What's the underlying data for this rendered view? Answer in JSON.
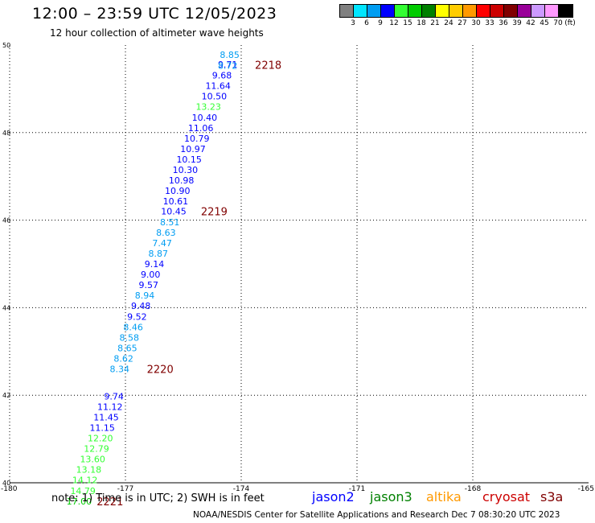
{
  "header": {
    "title": "12:00 – 23:59 UTC 12/05/2023",
    "subtitle": "12 hour collection of altimeter wave heights"
  },
  "scale": {
    "colors": [
      "#808080",
      "#00e5ff",
      "#009df2",
      "#0000ff",
      "#33ff33",
      "#00cc00",
      "#008000",
      "#ffff00",
      "#ffcc00",
      "#ff9900",
      "#ff0000",
      "#cc0000",
      "#800000",
      "#990099",
      "#cc99ff",
      "#ff99ff",
      "#000000"
    ],
    "labels": [
      "3",
      "6",
      "9",
      "12",
      "15",
      "18",
      "21",
      "24",
      "27",
      "30",
      "33",
      "36",
      "39",
      "42",
      "45",
      "70",
      "(ft)"
    ]
  },
  "chart_data": {
    "type": "scatter",
    "xlim": [
      -180,
      -165
    ],
    "ylim": [
      40,
      50
    ],
    "x_ticks": [
      "-180",
      "-177",
      "-174",
      "-171",
      "-168",
      "-165"
    ],
    "y_ticks": [
      "50",
      "48",
      "46",
      "44",
      "42",
      "40"
    ],
    "grid": true,
    "points": [
      {
        "lon": -174.3,
        "lat": 49.78,
        "label": "8.85",
        "color": "#009df2"
      },
      {
        "lon": -174.35,
        "lat": 49.56,
        "label": "9.71",
        "color": "#0000ff"
      },
      {
        "lon": -174.35,
        "lat": 49.53,
        "label": "8.72",
        "color": "#009df2"
      },
      {
        "lon": -174.5,
        "lat": 49.31,
        "label": "9.68",
        "color": "#0000ff"
      },
      {
        "lon": -174.6,
        "lat": 49.07,
        "label": "11.64",
        "color": "#0000ff"
      },
      {
        "lon": -174.7,
        "lat": 48.83,
        "label": "10.50",
        "color": "#0000ff"
      },
      {
        "lon": -174.85,
        "lat": 48.59,
        "label": "13.23",
        "color": "#33ff33"
      },
      {
        "lon": -174.95,
        "lat": 48.35,
        "label": "10.40",
        "color": "#0000ff"
      },
      {
        "lon": -175.05,
        "lat": 48.11,
        "label": "11.06",
        "color": "#0000ff"
      },
      {
        "lon": -175.15,
        "lat": 47.87,
        "label": "10.79",
        "color": "#0000ff"
      },
      {
        "lon": -175.25,
        "lat": 47.63,
        "label": "10.97",
        "color": "#0000ff"
      },
      {
        "lon": -175.35,
        "lat": 47.39,
        "label": "10.15",
        "color": "#0000ff"
      },
      {
        "lon": -175.45,
        "lat": 47.15,
        "label": "10.30",
        "color": "#0000ff"
      },
      {
        "lon": -175.55,
        "lat": 46.91,
        "label": "10.98",
        "color": "#0000ff"
      },
      {
        "lon": -175.65,
        "lat": 46.67,
        "label": "10.90",
        "color": "#0000ff"
      },
      {
        "lon": -175.7,
        "lat": 46.43,
        "label": "10.61",
        "color": "#0000ff"
      },
      {
        "lon": -175.75,
        "lat": 46.2,
        "label": "10.45",
        "color": "#0000ff"
      },
      {
        "lon": -175.85,
        "lat": 45.96,
        "label": "8.51",
        "color": "#009df2"
      },
      {
        "lon": -175.95,
        "lat": 45.72,
        "label": "8.63",
        "color": "#009df2"
      },
      {
        "lon": -176.05,
        "lat": 45.48,
        "label": "7.47",
        "color": "#009df2"
      },
      {
        "lon": -176.15,
        "lat": 45.24,
        "label": "8.87",
        "color": "#009df2"
      },
      {
        "lon": -176.25,
        "lat": 45.0,
        "label": "9.14",
        "color": "#0000ff"
      },
      {
        "lon": -176.35,
        "lat": 44.76,
        "label": "9.00",
        "color": "#0000ff"
      },
      {
        "lon": -176.4,
        "lat": 44.52,
        "label": "9.57",
        "color": "#0000ff"
      },
      {
        "lon": -176.5,
        "lat": 44.28,
        "label": "8.94",
        "color": "#009df2"
      },
      {
        "lon": -176.6,
        "lat": 44.04,
        "label": "9.48",
        "color": "#0000ff"
      },
      {
        "lon": -176.7,
        "lat": 43.8,
        "label": "9.52",
        "color": "#0000ff"
      },
      {
        "lon": -176.8,
        "lat": 43.56,
        "label": "8.46",
        "color": "#009df2"
      },
      {
        "lon": -176.9,
        "lat": 43.32,
        "label": "8.58",
        "color": "#009df2"
      },
      {
        "lon": -176.95,
        "lat": 43.08,
        "label": "8.65",
        "color": "#009df2"
      },
      {
        "lon": -177.05,
        "lat": 42.84,
        "label": "8.62",
        "color": "#009df2"
      },
      {
        "lon": -177.15,
        "lat": 42.6,
        "label": "8.34",
        "color": "#009df2"
      },
      {
        "lon": -177.3,
        "lat": 41.98,
        "label": "9.74",
        "color": "#0000ff"
      },
      {
        "lon": -177.4,
        "lat": 41.74,
        "label": "11.12",
        "color": "#0000ff"
      },
      {
        "lon": -177.5,
        "lat": 41.5,
        "label": "11.45",
        "color": "#0000ff"
      },
      {
        "lon": -177.6,
        "lat": 41.26,
        "label": "11.15",
        "color": "#0000ff"
      },
      {
        "lon": -177.65,
        "lat": 41.02,
        "label": "12.20",
        "color": "#33ff33"
      },
      {
        "lon": -177.75,
        "lat": 40.78,
        "label": "12.79",
        "color": "#33ff33"
      },
      {
        "lon": -177.85,
        "lat": 40.54,
        "label": "13.60",
        "color": "#33ff33"
      },
      {
        "lon": -177.95,
        "lat": 40.3,
        "label": "13.18",
        "color": "#33ff33"
      },
      {
        "lon": -178.05,
        "lat": 40.06,
        "label": "14.12",
        "color": "#33ff33"
      },
      {
        "lon": -178.1,
        "lat": 39.82,
        "label": "14.79",
        "color": "#33ff33"
      },
      {
        "lon": -178.2,
        "lat": 39.58,
        "label": "17.00",
        "color": "#00cc00"
      }
    ],
    "time_labels": [
      {
        "lon": -173.3,
        "lat": 49.55,
        "label": "2218"
      },
      {
        "lon": -174.7,
        "lat": 46.2,
        "label": "2219"
      },
      {
        "lon": -176.1,
        "lat": 42.6,
        "label": "2220"
      },
      {
        "lon": -177.4,
        "lat": 39.58,
        "label": "2221"
      }
    ]
  },
  "note": "note:  1) Time is in UTC;  2) SWH is in feet",
  "satellites": [
    {
      "name": "jason2",
      "color": "#0000ff"
    },
    {
      "name": "jason3",
      "color": "#008000"
    },
    {
      "name": "altika",
      "color": "#ff9900"
    },
    {
      "name": "cryosat",
      "color": "#cc0000"
    },
    {
      "name": "s3a",
      "color": "#800000"
    }
  ],
  "footer": "NOAA/NESDIS Center for Satellite Applications and Research    Dec  7 08:30:20 UTC 2023"
}
